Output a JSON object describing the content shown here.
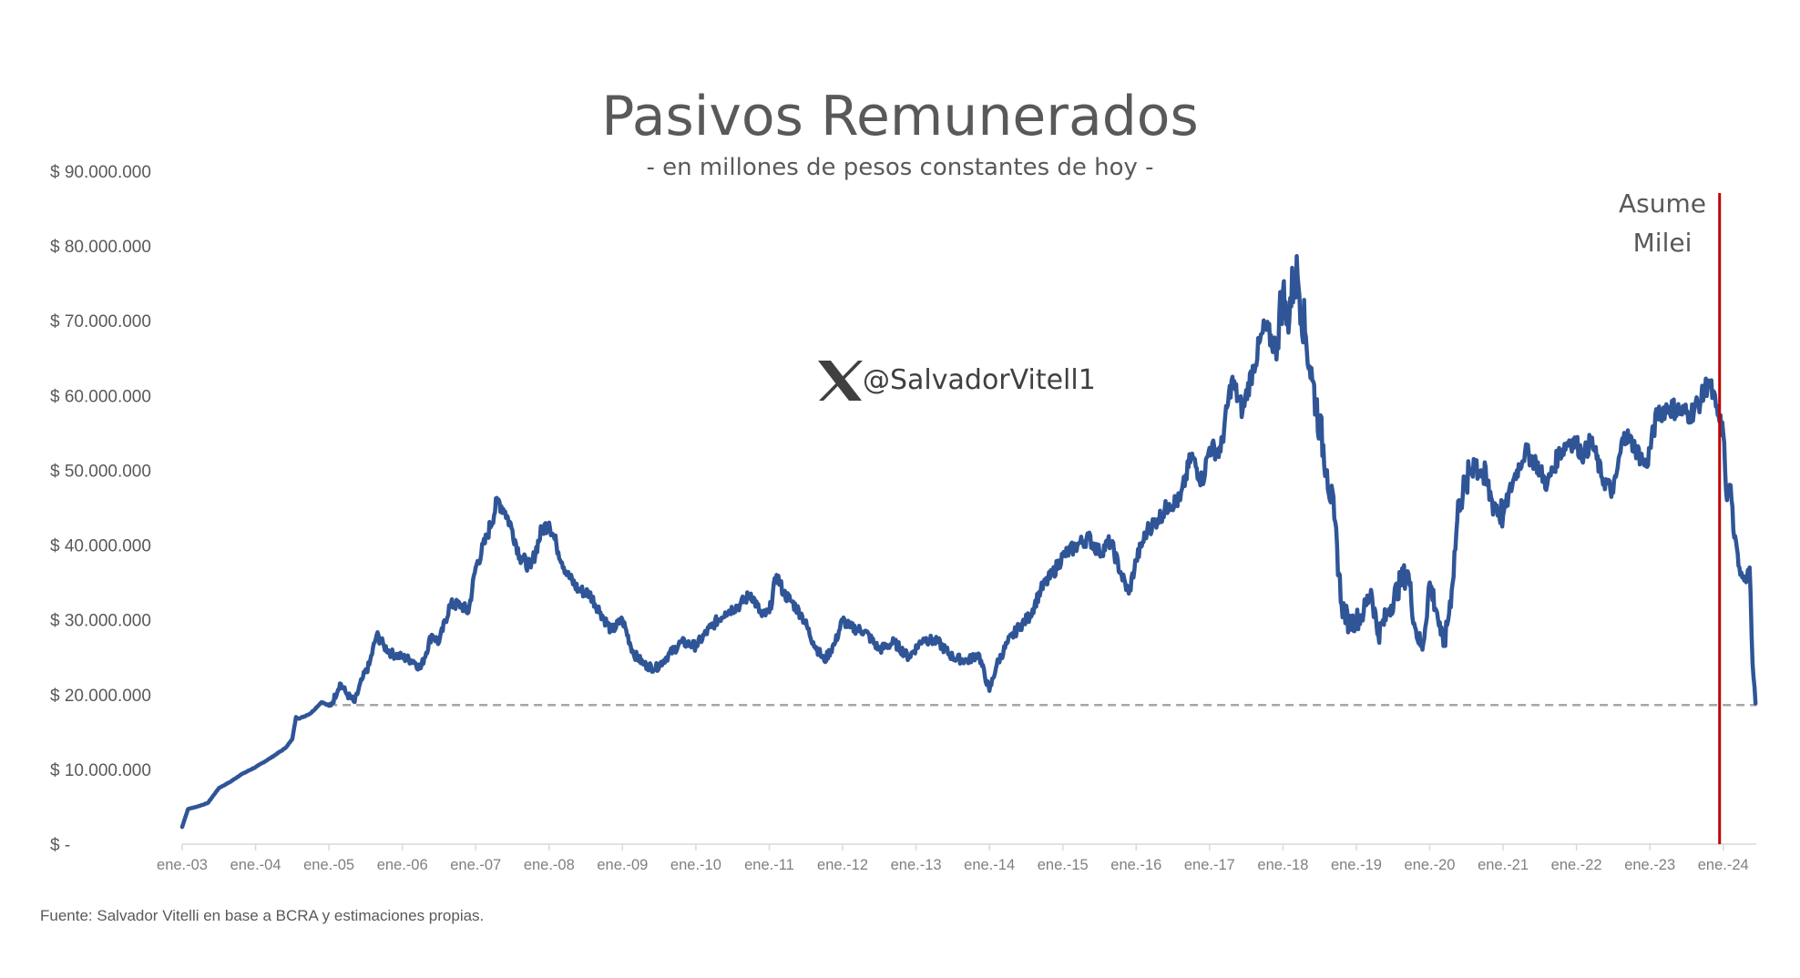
{
  "chart_data": {
    "type": "line",
    "title": "Pasivos Remunerados",
    "subtitle": "- en millones de pesos constantes de hoy -",
    "xlabel": "",
    "ylabel": "",
    "ylim": [
      0,
      90000000
    ],
    "xlim": [
      2003.0,
      2024.45
    ],
    "y_ticks": [
      {
        "value": 0,
        "label": "$ -"
      },
      {
        "value": 10000000,
        "label": "$ 10.000.000"
      },
      {
        "value": 20000000,
        "label": "$ 20.000.000"
      },
      {
        "value": 30000000,
        "label": "$ 30.000.000"
      },
      {
        "value": 40000000,
        "label": "$ 40.000.000"
      },
      {
        "value": 50000000,
        "label": "$ 50.000.000"
      },
      {
        "value": 60000000,
        "label": "$ 60.000.000"
      },
      {
        "value": 70000000,
        "label": "$ 70.000.000"
      },
      {
        "value": 80000000,
        "label": "$ 80.000.000"
      },
      {
        "value": 90000000,
        "label": "$ 90.000.000"
      }
    ],
    "x_ticks": [
      {
        "value": 2003,
        "label": "ene.-03"
      },
      {
        "value": 2004,
        "label": "ene.-04"
      },
      {
        "value": 2005,
        "label": "ene.-05"
      },
      {
        "value": 2006,
        "label": "ene.-06"
      },
      {
        "value": 2007,
        "label": "ene.-07"
      },
      {
        "value": 2008,
        "label": "ene.-08"
      },
      {
        "value": 2009,
        "label": "ene.-09"
      },
      {
        "value": 2010,
        "label": "ene.-10"
      },
      {
        "value": 2011,
        "label": "ene.-11"
      },
      {
        "value": 2012,
        "label": "ene.-12"
      },
      {
        "value": 2013,
        "label": "ene.-13"
      },
      {
        "value": 2014,
        "label": "ene.-14"
      },
      {
        "value": 2015,
        "label": "ene.-15"
      },
      {
        "value": 2016,
        "label": "ene.-16"
      },
      {
        "value": 2017,
        "label": "ene.-17"
      },
      {
        "value": 2018,
        "label": "ene.-18"
      },
      {
        "value": 2019,
        "label": "ene.-19"
      },
      {
        "value": 2020,
        "label": "ene.-20"
      },
      {
        "value": 2021,
        "label": "ene.-21"
      },
      {
        "value": 2022,
        "label": "ene.-22"
      },
      {
        "value": 2023,
        "label": "ene.-23"
      },
      {
        "value": 2024,
        "label": "ene.-24"
      }
    ],
    "series": [
      {
        "color": "#2f5597",
        "x": [
          2003.0,
          2003.08,
          2003.2,
          2003.35,
          2003.5,
          2003.65,
          2003.8,
          2004.0,
          2004.2,
          2004.4,
          2004.5,
          2004.55,
          2004.6,
          2004.75,
          2004.9,
          2005.0,
          2005.05,
          2005.15,
          2005.25,
          2005.35,
          2005.45,
          2005.55,
          2005.65,
          2005.75,
          2005.85,
          2006.0,
          2006.15,
          2006.25,
          2006.4,
          2006.5,
          2006.65,
          2006.8,
          2006.9,
          2007.0,
          2007.15,
          2007.3,
          2007.4,
          2007.5,
          2007.6,
          2007.75,
          2007.9,
          2008.0,
          2008.1,
          2008.25,
          2008.4,
          2008.55,
          2008.7,
          2008.85,
          2009.0,
          2009.15,
          2009.3,
          2009.45,
          2009.6,
          2009.8,
          2010.0,
          2010.2,
          2010.4,
          2010.6,
          2010.75,
          2010.9,
          2011.0,
          2011.1,
          2011.2,
          2011.3,
          2011.45,
          2011.6,
          2011.75,
          2011.9,
          2012.0,
          2012.1,
          2012.3,
          2012.5,
          2012.7,
          2012.9,
          2013.1,
          2013.3,
          2013.5,
          2013.7,
          2013.85,
          2014.0,
          2014.1,
          2014.25,
          2014.4,
          2014.55,
          2014.7,
          2014.85,
          2015.0,
          2015.2,
          2015.35,
          2015.5,
          2015.65,
          2015.8,
          2015.9,
          2016.0,
          2016.15,
          2016.3,
          2016.45,
          2016.6,
          2016.75,
          2016.9,
          2017.0,
          2017.15,
          2017.3,
          2017.45,
          2017.6,
          2017.75,
          2017.9,
          2018.0,
          2018.05,
          2018.15,
          2018.2,
          2018.3,
          2018.4,
          2018.5,
          2018.6,
          2018.7,
          2018.8,
          2018.9,
          2019.0,
          2019.1,
          2019.2,
          2019.3,
          2019.45,
          2019.6,
          2019.7,
          2019.8,
          2019.9,
          2020.0,
          2020.1,
          2020.15,
          2020.2,
          2020.3,
          2020.4,
          2020.5,
          2020.6,
          2020.7,
          2020.85,
          2021.0,
          2021.15,
          2021.3,
          2021.45,
          2021.6,
          2021.75,
          2021.9,
          2022.0,
          2022.1,
          2022.2,
          2022.35,
          2022.5,
          2022.65,
          2022.8,
          2022.95,
          2023.1,
          2023.25,
          2023.4,
          2023.55,
          2023.7,
          2023.8,
          2023.9,
          2023.95,
          2024.0,
          2024.05,
          2024.1,
          2024.15,
          2024.22,
          2024.3,
          2024.36,
          2024.4,
          2024.44
        ],
        "values": [
          2300000,
          4700000,
          5000000,
          5500000,
          7500000,
          8300000,
          9300000,
          10300000,
          11500000,
          12800000,
          14000000,
          17000000,
          16800000,
          17500000,
          19000000,
          18500000,
          19000000,
          21500000,
          20000000,
          19000000,
          22000000,
          24000000,
          28000000,
          26500000,
          25500000,
          25000000,
          24500000,
          23500000,
          28000000,
          27000000,
          32000000,
          32000000,
          31000000,
          37000000,
          41000000,
          46000000,
          44500000,
          42000000,
          38500000,
          37000000,
          42000000,
          43000000,
          40000000,
          36000000,
          34000000,
          33500000,
          31000000,
          28500000,
          30000000,
          25500000,
          24000000,
          23500000,
          25000000,
          27000000,
          26500000,
          29000000,
          31000000,
          32000000,
          33500000,
          30500000,
          31000000,
          36000000,
          33500000,
          32500000,
          30500000,
          27000000,
          24500000,
          27000000,
          30000000,
          29000000,
          28500000,
          26000000,
          27000000,
          25000000,
          27500000,
          27000000,
          25000000,
          24500000,
          25500000,
          20500000,
          24000000,
          27000000,
          29000000,
          30500000,
          34000000,
          36000000,
          38500000,
          40000000,
          41000000,
          39000000,
          40500000,
          36000000,
          33500000,
          38000000,
          42000000,
          43500000,
          45500000,
          46000000,
          52000000,
          48500000,
          53000000,
          52500000,
          62000000,
          58000000,
          64000000,
          69000000,
          66500000,
          74000000,
          69500000,
          75500000,
          76000000,
          68500000,
          62000000,
          56000000,
          50000000,
          43500000,
          32000000,
          29500000,
          30000000,
          31000000,
          34000000,
          28000000,
          31500000,
          35000000,
          36500000,
          29000000,
          26000000,
          35000000,
          31000000,
          28000000,
          26500000,
          34000000,
          46000000,
          48000000,
          51500000,
          50000000,
          46000000,
          44000000,
          49000000,
          52500000,
          51000000,
          48000000,
          52000000,
          54000000,
          53500000,
          52000000,
          54000000,
          49000000,
          47000000,
          55000000,
          53000000,
          50500000,
          57500000,
          58500000,
          58000000,
          57500000,
          59500000,
          62000000,
          58500000,
          56500000,
          55000000,
          46000000,
          48000000,
          41000000,
          37000000,
          35500000,
          37000000,
          24000000,
          18800000
        ]
      }
    ],
    "reference_line": {
      "value": 18600000,
      "from": 2005.0,
      "to": 2024.45,
      "color": "#a6a6a6",
      "style": "dashed"
    },
    "event_line": {
      "x": 2023.95,
      "color": "#c00000",
      "label_lines": [
        "Asume",
        "Milei"
      ]
    },
    "grid": false,
    "legend": "none",
    "watermark": "@SalvadorVitell1",
    "source": "Fuente: Salvador Vitelli en base a BCRA y estimaciones propias."
  }
}
